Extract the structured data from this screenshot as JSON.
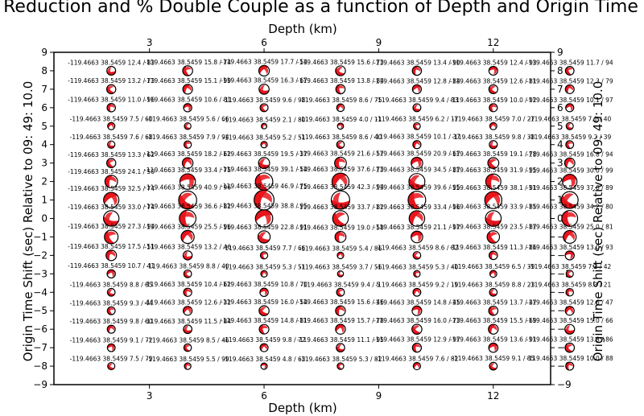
{
  "chart_data": {
    "type": "scatter",
    "title": "Variance Reduction and % Double Couple as a function of Depth and Origin Time Shift",
    "xlabel": "Depth (km)",
    "ylabel": "Origin Time Shift (sec) Relative to 09: 49: 10.0",
    "xlim": [
      0.5,
      13.5
    ],
    "ylim": [
      -9,
      9
    ],
    "xticks": [
      3,
      6,
      9,
      12
    ],
    "yticks": [
      -9,
      -8,
      -7,
      -6,
      -5,
      -4,
      -3,
      -2,
      -1,
      0,
      1,
      2,
      3,
      4,
      5,
      6,
      7,
      8,
      9
    ],
    "grid": false,
    "marker": "focal-mechanism beachball (red / white), size scaled by variance reduction",
    "colors": {
      "compressional": "#e8141c",
      "dilatational": "#ffffff",
      "outline": "#000000"
    },
    "lon": "-119.4663",
    "lat": "38.5459",
    "depths": [
      2,
      4,
      6,
      8,
      10,
      12,
      14
    ],
    "rows": [
      {
        "shift": 8,
        "values": [
          "12.4 / 83",
          "15.8 / 74",
          "17.7 / 54",
          "15.6 / 73",
          "13.4 / 90",
          "12.4 / 93",
          "11.7 / 94"
        ]
      },
      {
        "shift": 7,
        "values": [
          "13.2 / 73",
          "15.1 / 99",
          "16.3 / 67",
          "13.8 / 84",
          "12.8 / 84",
          "12.6 / 81",
          "12.3 / 79"
        ]
      },
      {
        "shift": 6,
        "values": [
          "11.0 / 96",
          "10.6 / 81",
          "9.6 / 98",
          "8.6 / 75",
          "9.4 / 83",
          "10.0 / 92",
          "10.1 / 97"
        ]
      },
      {
        "shift": 5,
        "values": [
          "7.5 / 60",
          "5.6 / 66",
          "2.1 / 80",
          "4.0 / 11",
          "6.2 / 17",
          "7.0 / 27",
          "7.1 / 40"
        ]
      },
      {
        "shift": 4,
        "values": [
          "7.6 / 68",
          "7.9 / 94",
          "5.2 / 51",
          "8.6 / 40",
          "10.1 / 37",
          "9.8 / 38",
          "9.2 / 39"
        ]
      },
      {
        "shift": 3,
        "values": [
          "13.3 / 62",
          "18.2 / 62",
          "19.5 / 37",
          "21.6 / 57",
          "20.9 / 67",
          "19.1 / 78",
          "16.8 / 94"
        ]
      },
      {
        "shift": 2,
        "values": [
          "24.1 / 50",
          "33.4 / 75",
          "39.1 / 54",
          "37.6 / 73",
          "34.5 / 87",
          "31.9 / 95",
          "30.0 / 99"
        ]
      },
      {
        "shift": 1,
        "values": [
          "32.5 / 74",
          "40.9 / 96",
          "46.9 / 75",
          "42.3 / 94",
          "39.6 / 95",
          "38.1 / 91",
          "37.0 / 89"
        ]
      },
      {
        "shift": 0,
        "values": [
          "33.0 / 74",
          "36.6 / 82",
          "38.8 / 95",
          "33.7 / 82",
          "33.4 / 96",
          "33.9 / 85",
          "34.2 / 80"
        ]
      },
      {
        "shift": -1,
        "values": [
          "27.3 / 94",
          "25.5 / 96",
          "22.8 / 91",
          "19.0 / 58",
          "21.1 / 97",
          "23.5 / 87",
          "25.0 / 81"
        ]
      },
      {
        "shift": -2,
        "values": [
          "17.5 / 51",
          "13.2 / 46",
          "7.7 / 66",
          "5.4 / 86",
          "8.6 / 82",
          "11.3 / 86",
          "13.0 / 93"
        ]
      },
      {
        "shift": -3,
        "values": [
          "10.7 / 41",
          "8.8 / 40",
          "5.3 / 51",
          "3.7 / 56",
          "5.3 / 40",
          "6.5 / 39",
          "7.2 / 42"
        ]
      },
      {
        "shift": -4,
        "values": [
          "8.8 / 85",
          "10.4 / 62",
          "10.8 / 70",
          "9.4 / 5",
          "9.2 / 19",
          "8.8 / 23",
          "8.3 / 21"
        ]
      },
      {
        "shift": -5,
        "values": [
          "9.3 / 44",
          "12.6 / 32",
          "16.0 / 54",
          "15.6 / 46",
          "14.8 / 45",
          "13.7 / 47",
          "12.6 / 47"
        ]
      },
      {
        "shift": -6,
        "values": [
          "9.8 / 60",
          "11.5 / 84",
          "14.8 / 81",
          "15.7 / 78",
          "16.0 / 73",
          "15.5 / 69",
          "15.0 / 66"
        ]
      },
      {
        "shift": -7,
        "values": [
          "9.1 / 72",
          "8.5 / 46",
          "9.8 / 72",
          "11.1 / 95",
          "12.9 / 97",
          "13.6 / 91",
          "13.8 / 86"
        ]
      },
      {
        "shift": -8,
        "values": [
          "7.5 / 79",
          "5.5 / 99",
          "4.8 / 63",
          "5.3 / 82",
          "7.6 / 82",
          "9.1 / 85",
          "10.0 / 88"
        ]
      }
    ]
  }
}
